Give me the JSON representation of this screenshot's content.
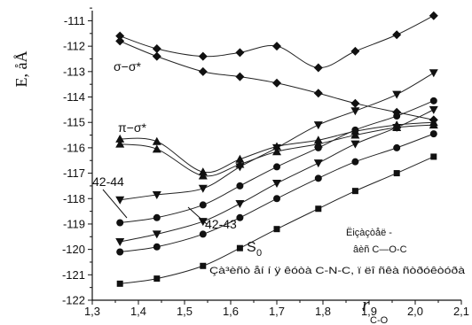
{
  "chart_data": {
    "type": "line",
    "ylabel": "E, åÅ",
    "xlabel": "r",
    "xlabel_sub": "C-O",
    "xlim": [
      1.3,
      2.1
    ],
    "ylim": [
      -122,
      -110.6
    ],
    "xticks": [
      "1,3",
      "1,4",
      "1,5",
      "1,6",
      "1,7",
      "1,8",
      "1,9",
      "2,0",
      "2,1"
    ],
    "yticks": [
      "-111",
      "-112",
      "-113",
      "-114",
      "-115",
      "-116",
      "-117",
      "-118",
      "-119",
      "-120",
      "-121",
      "-122"
    ],
    "series": [
      {
        "marker": "diamond",
        "x": [
          1.36,
          1.44,
          1.54,
          1.62,
          1.7,
          1.79,
          1.87,
          1.96,
          2.04
        ],
        "y": [
          -111.6,
          -112.1,
          -112.4,
          -112.25,
          -112.0,
          -112.85,
          -112.2,
          -111.55,
          -110.8
        ]
      },
      {
        "marker": "diamond",
        "x": [
          1.36,
          1.44,
          1.54,
          1.62,
          1.7,
          1.79,
          1.87,
          1.96,
          2.04
        ],
        "y": [
          -111.8,
          -112.4,
          -113.0,
          -113.2,
          -113.45,
          -113.85,
          -114.25,
          -114.6,
          -114.9
        ]
      },
      {
        "marker": "triangle-up",
        "x": [
          1.36,
          1.44,
          1.54,
          1.62,
          1.7,
          1.79,
          1.87,
          1.96,
          2.04
        ],
        "y": [
          -115.65,
          -115.75,
          -116.95,
          -116.45,
          -115.95,
          -115.7,
          -115.35,
          -115.1,
          -115.0
        ]
      },
      {
        "marker": "triangle-up",
        "x": [
          1.36,
          1.44,
          1.54,
          1.62,
          1.7,
          1.79,
          1.87,
          1.96,
          2.04
        ],
        "y": [
          -115.85,
          -116.05,
          -117.1,
          -116.65,
          -116.15,
          -115.85,
          -115.5,
          -115.2,
          -115.1
        ]
      },
      {
        "marker": "triangle-down",
        "x": [
          1.36,
          1.44,
          1.54,
          1.62,
          1.7,
          1.79,
          1.87,
          1.96,
          2.04
        ],
        "y": [
          -118.05,
          -117.85,
          -117.6,
          -116.75,
          -116.0,
          -115.1,
          -114.55,
          -113.9,
          -113.05
        ]
      },
      {
        "marker": "circle",
        "x": [
          1.36,
          1.44,
          1.54,
          1.62,
          1.7,
          1.79,
          1.87,
          1.96,
          2.04
        ],
        "y": [
          -118.95,
          -118.75,
          -118.25,
          -117.5,
          -116.75,
          -116.0,
          -115.3,
          -114.75,
          -114.15
        ]
      },
      {
        "marker": "triangle-down",
        "x": [
          1.36,
          1.44,
          1.54,
          1.62,
          1.7,
          1.79,
          1.87,
          1.96,
          2.04
        ],
        "y": [
          -119.7,
          -119.4,
          -118.9,
          -118.2,
          -117.4,
          -116.6,
          -115.85,
          -115.2,
          -114.5
        ]
      },
      {
        "marker": "circle",
        "x": [
          1.36,
          1.44,
          1.54,
          1.62,
          1.7,
          1.79,
          1.87,
          1.96,
          2.04
        ],
        "y": [
          -120.1,
          -119.9,
          -119.4,
          -118.75,
          -118.0,
          -117.2,
          -116.55,
          -116.0,
          -115.45
        ]
      },
      {
        "marker": "square",
        "x": [
          1.36,
          1.44,
          1.54,
          1.62,
          1.7,
          1.79,
          1.87,
          1.96,
          2.04
        ],
        "y": [
          -121.35,
          -121.15,
          -120.65,
          -119.95,
          -119.2,
          -118.4,
          -117.7,
          -117.0,
          -116.35
        ]
      }
    ],
    "annotations": {
      "sigma": "σ−σ*",
      "pi": "π−σ*",
      "label_4244": "42-44",
      "label_4243": "42-43",
      "s0": "S",
      "s0_sub": "0",
      "legend_line1": "Ëiçàçòåë -",
      "legend_line2": "âèñ C—O-C",
      "legend_line3": "Çà³èñò åí í ÿ êóòà C-N-C, ï ëî ñêà ñòðóêòóðà"
    }
  }
}
